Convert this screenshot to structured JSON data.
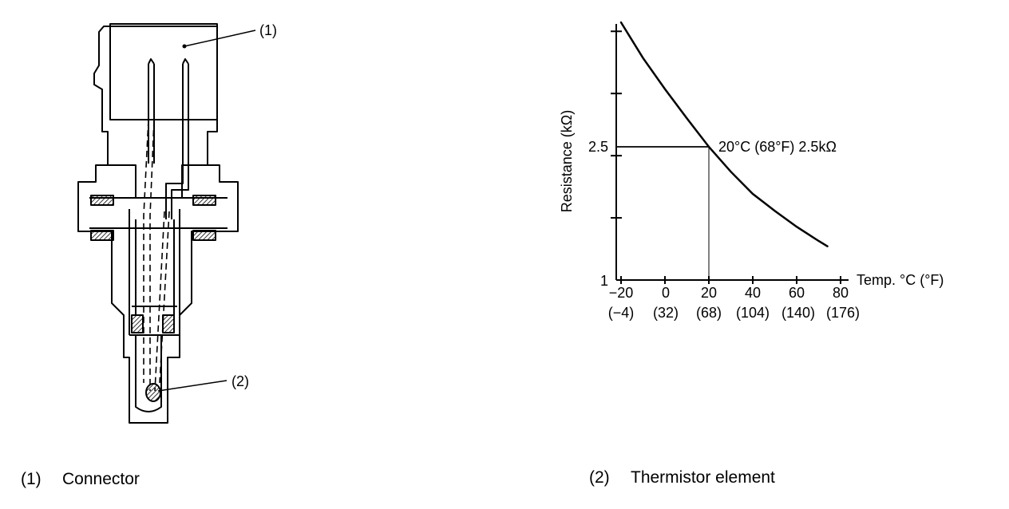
{
  "sensor": {
    "callout_1": "(1)",
    "callout_2": "(2)"
  },
  "chart_data": {
    "type": "line",
    "title": "",
    "xlabel": "Temp. °C (°F)",
    "ylabel": "Resistance (kΩ)",
    "x_ticks_c": [
      "−20",
      "0",
      "20",
      "40",
      "60",
      "80"
    ],
    "x_ticks_f": [
      "(−4)",
      "(32)",
      "(68)",
      "(104)",
      "(140)",
      "(176)"
    ],
    "y_tick_labels": [
      "1",
      "2.5"
    ],
    "xlim": [
      -20,
      80
    ],
    "series": [
      {
        "x": [
          -20,
          -10,
          0,
          10,
          20,
          30,
          40,
          50,
          60,
          70,
          74
        ],
        "y": [
          3.9,
          3.5,
          3.15,
          2.82,
          2.5,
          2.22,
          1.97,
          1.78,
          1.6,
          1.44,
          1.38
        ]
      }
    ],
    "annotation": {
      "x": 20,
      "y": 2.5,
      "text": "20°C (68°F) 2.5kΩ"
    }
  },
  "captions": [
    {
      "number": "(1)",
      "label": "Connector"
    },
    {
      "number": "(2)",
      "label": "Thermistor element"
    }
  ]
}
